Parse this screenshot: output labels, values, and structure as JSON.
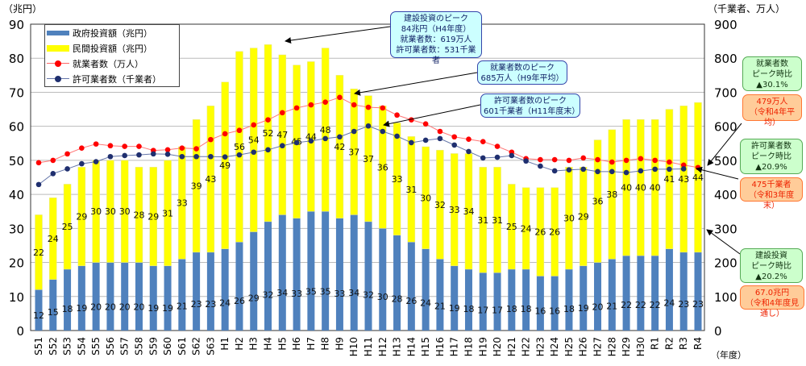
{
  "chart_data": {
    "type": "bar",
    "stacked": true,
    "categories": [
      "S51",
      "S52",
      "S53",
      "S54",
      "S55",
      "S56",
      "S57",
      "S58",
      "S59",
      "S60",
      "S61",
      "S62",
      "S63",
      "H1",
      "H2",
      "H3",
      "H4",
      "H5",
      "H6",
      "H7",
      "H8",
      "H9",
      "H10",
      "H11",
      "H12",
      "H13",
      "H14",
      "H15",
      "H16",
      "H17",
      "H18",
      "H19",
      "H20",
      "H21",
      "H22",
      "H23",
      "H24",
      "H25",
      "H26",
      "H27",
      "H28",
      "H29",
      "H30",
      "R1",
      "R2",
      "R3",
      "R4"
    ],
    "xlabel": "（年度）",
    "ylabel_left": "（兆円）",
    "ylabel_right": "（千業者、万人）",
    "ylim_left": [
      0,
      90
    ],
    "ylim_right": [
      0,
      900
    ],
    "yticks_left": [
      0,
      10,
      20,
      30,
      40,
      50,
      60,
      70,
      80,
      90
    ],
    "yticks_right": [
      0,
      100,
      200,
      300,
      400,
      500,
      600,
      700,
      800,
      900
    ],
    "grid": true,
    "legend_position": "top-left",
    "series": [
      {
        "name": "政府投資額（兆円）",
        "kind": "bar",
        "axis": "left",
        "color": "#4f81bd",
        "values": [
          12,
          15,
          18,
          19,
          20,
          20,
          20,
          20,
          19,
          19,
          21,
          23,
          23,
          24,
          26,
          29,
          32,
          34,
          33,
          35,
          35,
          33,
          34,
          32,
          30,
          28,
          26,
          24,
          21,
          19,
          18,
          17,
          17,
          18,
          18,
          16,
          16,
          18,
          19,
          20,
          21,
          22,
          22,
          22,
          24,
          23,
          23
        ]
      },
      {
        "name": "民間投資額（兆円）",
        "kind": "bar",
        "axis": "left",
        "color": "#ffff00",
        "values": [
          22,
          24,
          25,
          29,
          30,
          30,
          30,
          28,
          29,
          31,
          33,
          39,
          43,
          49,
          56,
          54,
          52,
          47,
          45,
          44,
          48,
          42,
          37,
          37,
          36,
          33,
          31,
          30,
          32,
          33,
          34,
          31,
          31,
          25,
          24,
          26,
          26,
          30,
          29,
          36,
          38,
          40,
          40,
          40,
          41,
          43,
          44
        ]
      },
      {
        "name": "就業者数（万人）",
        "kind": "line",
        "axis": "right",
        "color": "#ff0000",
        "values": [
          493,
          500,
          519,
          536,
          548,
          543,
          541,
          541,
          529,
          531,
          536,
          534,
          561,
          578,
          588,
          604,
          619,
          640,
          654,
          663,
          671,
          685,
          663,
          656,
          654,
          633,
          619,
          607,
          585,
          569,
          562,
          555,
          541,
          524,
          505,
          502,
          502,
          500,
          507,
          502,
          495,
          500,
          505,
          500,
          495,
          486,
          479
        ]
      },
      {
        "name": "許可業者数（千業者）",
        "kind": "line",
        "axis": "right",
        "color": "#1f2f6f",
        "values": [
          429,
          461,
          475,
          490,
          496,
          511,
          514,
          516,
          519,
          518,
          511,
          511,
          511,
          510,
          516,
          524,
          531,
          543,
          552,
          557,
          564,
          569,
          585,
          601,
          585,
          571,
          552,
          559,
          564,
          545,
          526,
          507,
          509,
          514,
          498,
          483,
          469,
          472,
          474,
          467,
          467,
          464,
          469,
          474,
          474,
          475,
          null
        ]
      }
    ],
    "annotations": {
      "peak_investment": [
        "建設投資のピーク",
        "84兆円（H4年度）",
        "就業者数：619万人",
        "許可業者数：531千業者"
      ],
      "peak_workers": [
        "就業者数のピーク",
        "685万人（H9年平均）"
      ],
      "peak_permits": [
        "許可業者数のピーク",
        "601千業者（H11年度末）"
      ],
      "workers_ratio": [
        "就業者数",
        "ピーク時比",
        "▲30.1%"
      ],
      "workers_now": [
        "479万人",
        "（令和4年平均）"
      ],
      "permits_ratio": [
        "許可業者数",
        "ピーク時比",
        "▲20.9%"
      ],
      "permits_now": [
        "475千業者",
        "（令和3年度末）"
      ],
      "invest_ratio": [
        "建設投資",
        "ピーク時比",
        "▲20.2%"
      ],
      "invest_now": [
        "67.0兆円",
        "（令和4年度見通し）"
      ]
    }
  }
}
